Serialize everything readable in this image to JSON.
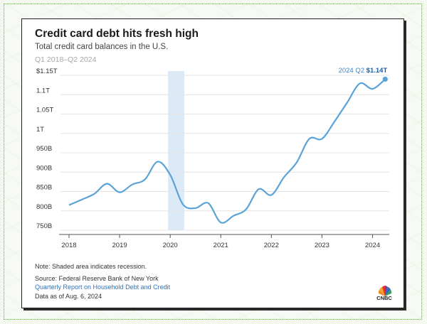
{
  "chart_data": {
    "type": "line",
    "title": "Credit card debt hits fresh high",
    "subtitle": "Total credit card balances in the U.S.",
    "date_range": "Q1 2018–Q2 2024",
    "y_ticks": [
      "$1.15T",
      "1.1T",
      "1.05T",
      "1T",
      "950B",
      "900B",
      "850B",
      "800B",
      "750B"
    ],
    "x_ticks": [
      "2018",
      "2019",
      "2020",
      "2021",
      "2022",
      "2023",
      "2024"
    ],
    "ylim": [
      750,
      1150
    ],
    "y_unit": "billions USD",
    "x": [
      "2018-Q1",
      "2018-Q2",
      "2018-Q3",
      "2018-Q4",
      "2019-Q1",
      "2019-Q2",
      "2019-Q3",
      "2019-Q4",
      "2020-Q1",
      "2020-Q2",
      "2020-Q3",
      "2020-Q4",
      "2021-Q1",
      "2021-Q2",
      "2021-Q3",
      "2021-Q4",
      "2022-Q1",
      "2022-Q2",
      "2022-Q3",
      "2022-Q4",
      "2023-Q1",
      "2023-Q2",
      "2023-Q3",
      "2023-Q4",
      "2024-Q1",
      "2024-Q2"
    ],
    "values": [
      815,
      829,
      844,
      870,
      848,
      868,
      881,
      927,
      893,
      817,
      807,
      820,
      770,
      787,
      804,
      856,
      841,
      887,
      925,
      986,
      986,
      1031,
      1080,
      1129,
      1115,
      1140
    ],
    "recession_shade": [
      "2020-Q1",
      "2020-Q2"
    ],
    "grid": true,
    "annotation": {
      "label": "2024 Q2 ",
      "value": "$1.14T"
    },
    "line_color": "#5aa3d8",
    "shade_color": "#dceaf7"
  },
  "footer": {
    "note": "Note: Shaded area indicates recession.",
    "source": "Source: Federal Reserve Bank of New York",
    "report": "Quarterly Report on Household Debt and Credit",
    "data_as_of": "Data as of Aug. 6, 2024"
  },
  "brand": {
    "name": "CNBC"
  }
}
